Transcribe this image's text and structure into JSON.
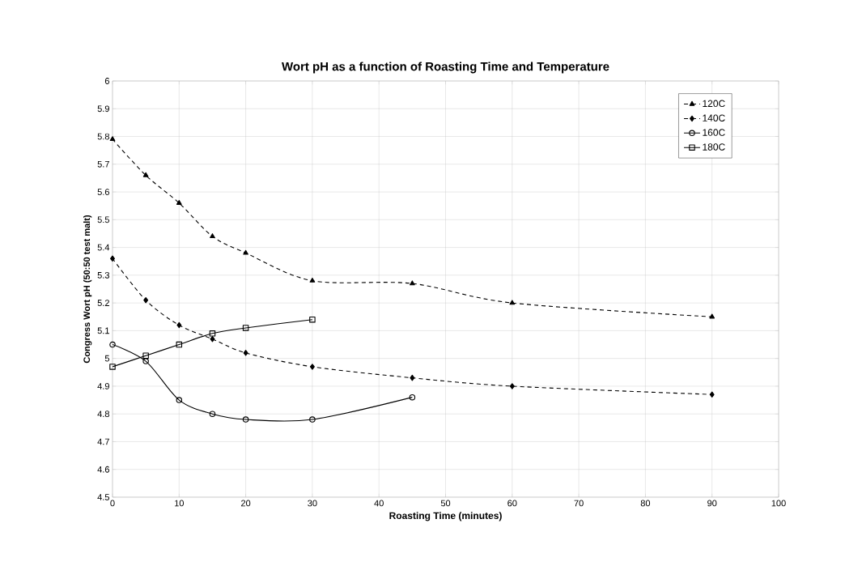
{
  "chart_data": {
    "type": "line",
    "title": "Wort pH as a function of Roasting Time and Temperature",
    "xlabel": "Roasting Time (minutes)",
    "ylabel": "Congress Wort pH (50:50 test malt)",
    "series": [
      {
        "name": "120C",
        "color": "#000000",
        "marker": "triangle",
        "line_style": "dashed",
        "x": [
          0,
          5,
          10,
          15,
          20,
          30,
          45,
          60,
          90
        ],
        "values": [
          5.79,
          5.66,
          5.56,
          5.44,
          5.38,
          5.28,
          5.27,
          5.2,
          5.15
        ]
      },
      {
        "name": "140C",
        "color": "#000000",
        "marker": "diamond",
        "line_style": "dashed",
        "x": [
          0,
          5,
          10,
          15,
          20,
          30,
          45,
          60,
          90
        ],
        "values": [
          5.36,
          5.21,
          5.12,
          5.07,
          5.02,
          4.97,
          4.93,
          4.9,
          4.87
        ]
      },
      {
        "name": "160C",
        "color": "#000000",
        "marker": "circle",
        "line_style": "solid",
        "x": [
          0,
          5,
          10,
          15,
          20,
          30,
          45
        ],
        "values": [
          5.05,
          4.99,
          4.85,
          4.8,
          4.78,
          4.78,
          4.86
        ]
      },
      {
        "name": "180C",
        "color": "#000000",
        "marker": "square",
        "line_style": "solid",
        "x": [
          0,
          5,
          10,
          15,
          20,
          30
        ],
        "values": [
          4.97,
          5.01,
          5.05,
          5.09,
          5.11,
          5.14
        ]
      }
    ],
    "xlim": [
      0,
      100
    ],
    "xticks": [
      0,
      10,
      20,
      30,
      40,
      50,
      60,
      70,
      80,
      90,
      100
    ],
    "ylim": [
      4.5,
      6
    ],
    "yticks": [
      4.5,
      4.6,
      4.7,
      4.8,
      4.9,
      5,
      5.1,
      5.2,
      5.3,
      5.4,
      5.5,
      5.6,
      5.7,
      5.8,
      5.9,
      6
    ],
    "grid": true,
    "legend": "top right"
  }
}
